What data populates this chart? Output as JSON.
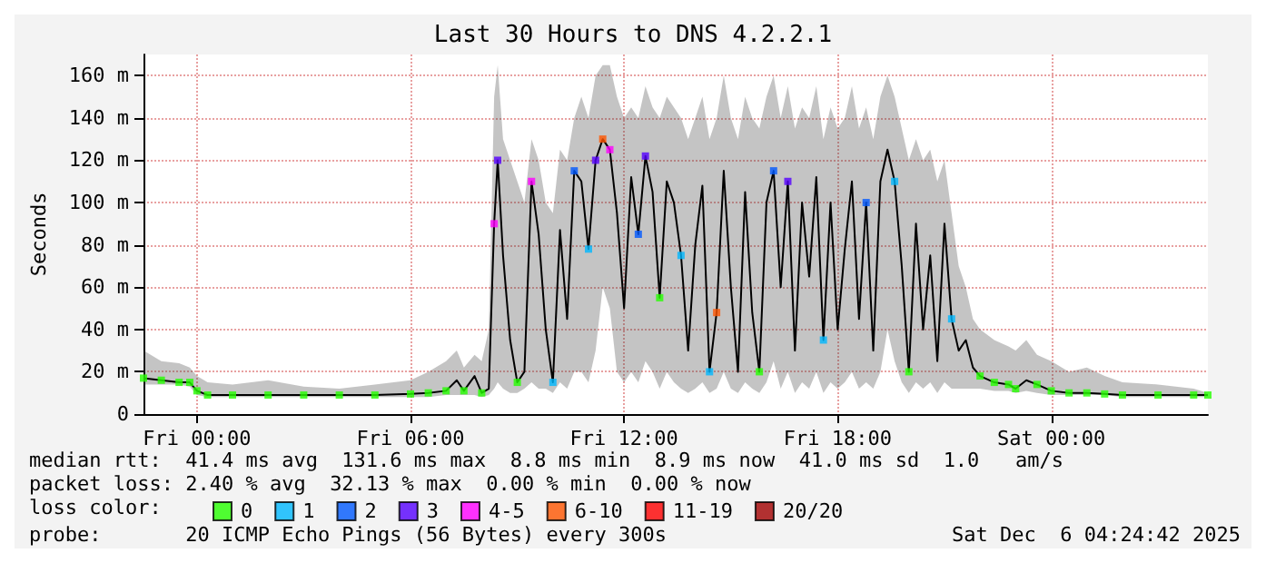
{
  "chart_data": {
    "type": "line",
    "title": "Last 30 Hours to DNS 4.2.2.1",
    "ylabel": "Seconds",
    "legend_title": "loss color:",
    "legend": "bottom",
    "grid": true,
    "marker": "square",
    "xlim": [
      "2025-12-04T22:30",
      "2025-12-06T04:24"
    ],
    "xticks": [
      {
        "value": "2025-12-05T00:00",
        "label": "Fri 00:00"
      },
      {
        "value": "2025-12-05T06:00",
        "label": "Fri 06:00"
      },
      {
        "value": "2025-12-05T12:00",
        "label": "Fri 12:00"
      },
      {
        "value": "2025-12-05T18:00",
        "label": "Fri 18:00"
      },
      {
        "value": "2025-12-06T00:00",
        "label": "Sat 00:00"
      }
    ],
    "ylim": [
      0,
      170
    ],
    "yticks": [
      0,
      {
        "value": 20,
        "label": "20 m"
      },
      {
        "value": 40,
        "label": "40 m"
      },
      {
        "value": 60,
        "label": "60 m"
      },
      {
        "value": 80,
        "label": "80 m"
      },
      {
        "value": 100,
        "label": "100 m"
      },
      {
        "value": 120,
        "label": "120 m"
      },
      {
        "value": 140,
        "label": "140 m"
      },
      {
        "value": 160,
        "label": "160 m"
      }
    ],
    "x": [
      "2025-12-04T22:30",
      "2025-12-04T23:00",
      "2025-12-04T23:30",
      "2025-12-04T23:48",
      "2025-12-05T00:00",
      "2025-12-05T00:18",
      "2025-12-05T01:00",
      "2025-12-05T02:00",
      "2025-12-05T03:00",
      "2025-12-05T04:00",
      "2025-12-05T05:00",
      "2025-12-05T06:00",
      "2025-12-05T06:30",
      "2025-12-05T07:00",
      "2025-12-05T07:18",
      "2025-12-05T07:30",
      "2025-12-05T07:48",
      "2025-12-05T08:00",
      "2025-12-05T08:12",
      "2025-12-05T08:21",
      "2025-12-05T08:27",
      "2025-12-05T08:36",
      "2025-12-05T08:48",
      "2025-12-05T09:00",
      "2025-12-05T09:12",
      "2025-12-05T09:24",
      "2025-12-05T09:36",
      "2025-12-05T09:48",
      "2025-12-05T10:00",
      "2025-12-05T10:12",
      "2025-12-05T10:24",
      "2025-12-05T10:36",
      "2025-12-05T10:48",
      "2025-12-05T11:00",
      "2025-12-05T11:12",
      "2025-12-05T11:24",
      "2025-12-05T11:36",
      "2025-12-05T11:48",
      "2025-12-05T12:00",
      "2025-12-05T12:12",
      "2025-12-05T12:24",
      "2025-12-05T12:36",
      "2025-12-05T12:48",
      "2025-12-05T13:00",
      "2025-12-05T13:12",
      "2025-12-05T13:24",
      "2025-12-05T13:36",
      "2025-12-05T13:48",
      "2025-12-05T14:00",
      "2025-12-05T14:12",
      "2025-12-05T14:24",
      "2025-12-05T14:36",
      "2025-12-05T14:48",
      "2025-12-05T15:00",
      "2025-12-05T15:12",
      "2025-12-05T15:24",
      "2025-12-05T15:36",
      "2025-12-05T15:48",
      "2025-12-05T16:00",
      "2025-12-05T16:12",
      "2025-12-05T16:24",
      "2025-12-05T16:36",
      "2025-12-05T16:48",
      "2025-12-05T17:00",
      "2025-12-05T17:12",
      "2025-12-05T17:24",
      "2025-12-05T17:36",
      "2025-12-05T17:48",
      "2025-12-05T18:00",
      "2025-12-05T18:12",
      "2025-12-05T18:24",
      "2025-12-05T18:36",
      "2025-12-05T18:48",
      "2025-12-05T19:00",
      "2025-12-05T19:12",
      "2025-12-05T19:24",
      "2025-12-05T19:36",
      "2025-12-05T19:48",
      "2025-12-05T20:00",
      "2025-12-05T20:12",
      "2025-12-05T20:24",
      "2025-12-05T20:36",
      "2025-12-05T20:48",
      "2025-12-05T21:00",
      "2025-12-05T21:12",
      "2025-12-05T21:24",
      "2025-12-05T21:36",
      "2025-12-05T21:48",
      "2025-12-05T22:00",
      "2025-12-05T22:24",
      "2025-12-05T22:48",
      "2025-12-05T23:00",
      "2025-12-05T23:18",
      "2025-12-05T23:36",
      "2025-12-06T00:00",
      "2025-12-06T00:30",
      "2025-12-06T01:00",
      "2025-12-06T01:30",
      "2025-12-06T02:00",
      "2025-12-06T03:00",
      "2025-12-06T04:00",
      "2025-12-06T04:24"
    ],
    "series": [
      {
        "color": "#000000",
        "marker": "none",
        "values": [
          17,
          16,
          15,
          15,
          11,
          9,
          9,
          9,
          9,
          9,
          9,
          9.5,
          10,
          11,
          16,
          11,
          18,
          10,
          12,
          90,
          120,
          75,
          35,
          15,
          20,
          110,
          85,
          40,
          15,
          87,
          45,
          115,
          110,
          78,
          120,
          130,
          125,
          95,
          50,
          112,
          85,
          122,
          105,
          55,
          110,
          100,
          75,
          30,
          80,
          108,
          20,
          48,
          115,
          60,
          20,
          105,
          48,
          20,
          100,
          115,
          60,
          110,
          30,
          100,
          65,
          112,
          35,
          100,
          40,
          78,
          110,
          45,
          100,
          30,
          110,
          125,
          110,
          70,
          20,
          90,
          40,
          75,
          25,
          90,
          45,
          30,
          35,
          22,
          18,
          15,
          14,
          12,
          16,
          14,
          11,
          10,
          10,
          9.5,
          9,
          9,
          9,
          9
        ],
        "lower": [
          14,
          14,
          14,
          13,
          9,
          8,
          8,
          8,
          8,
          8,
          8,
          8,
          8,
          9,
          9,
          9,
          9,
          8,
          9,
          12,
          15,
          12,
          10,
          10,
          12,
          15,
          12,
          12,
          10,
          15,
          12,
          20,
          20,
          15,
          30,
          60,
          50,
          20,
          15,
          20,
          15,
          25,
          20,
          12,
          20,
          15,
          12,
          10,
          12,
          15,
          10,
          12,
          20,
          12,
          10,
          15,
          12,
          10,
          15,
          25,
          12,
          20,
          10,
          15,
          12,
          20,
          10,
          15,
          12,
          15,
          20,
          12,
          15,
          12,
          20,
          40,
          25,
          15,
          10,
          15,
          12,
          15,
          10,
          15,
          12,
          12,
          12,
          12,
          12,
          11,
          11,
          10,
          11,
          10,
          9,
          9,
          9,
          9,
          8,
          8,
          8,
          8
        ],
        "upper": [
          30,
          25,
          24,
          22,
          18,
          15,
          14,
          16,
          13,
          12,
          14,
          16,
          20,
          25,
          30,
          22,
          28,
          25,
          40,
          150,
          165,
          130,
          120,
          110,
          100,
          130,
          120,
          100,
          95,
          125,
          120,
          140,
          150,
          140,
          160,
          165,
          165,
          150,
          140,
          145,
          140,
          155,
          145,
          140,
          150,
          145,
          140,
          130,
          140,
          150,
          130,
          140,
          160,
          140,
          130,
          150,
          140,
          135,
          150,
          160,
          140,
          155,
          135,
          145,
          140,
          155,
          130,
          145,
          135,
          140,
          155,
          135,
          145,
          130,
          150,
          160,
          150,
          135,
          120,
          130,
          120,
          125,
          110,
          120,
          95,
          70,
          60,
          45,
          40,
          35,
          32,
          30,
          35,
          28,
          25,
          20,
          22,
          18,
          15,
          14,
          12,
          10
        ]
      },
      {
        "type": "scatter",
        "name": "0",
        "color": "#26ff00",
        "x": [
          "2025-12-04T22:30",
          "2025-12-04T23:00",
          "2025-12-04T23:30",
          "2025-12-04T23:48",
          "2025-12-05T00:00",
          "2025-12-05T00:18",
          "2025-12-05T01:00",
          "2025-12-05T02:00",
          "2025-12-05T03:00",
          "2025-12-05T04:00",
          "2025-12-05T05:00",
          "2025-12-05T06:00",
          "2025-12-05T06:30",
          "2025-12-05T07:00",
          "2025-12-05T07:30",
          "2025-12-05T08:00",
          "2025-12-05T09:00",
          "2025-12-05T13:00",
          "2025-12-05T15:48",
          "2025-12-05T20:00",
          "2025-12-05T22:00",
          "2025-12-05T22:24",
          "2025-12-05T22:48",
          "2025-12-05T23:00",
          "2025-12-05T23:36",
          "2025-12-06T00:00",
          "2025-12-06T00:30",
          "2025-12-06T01:00",
          "2025-12-06T01:30",
          "2025-12-06T02:00",
          "2025-12-06T03:00",
          "2025-12-06T04:00",
          "2025-12-06T04:24"
        ],
        "values": [
          17,
          16,
          15,
          15,
          11,
          9,
          9,
          9,
          9,
          9,
          9,
          9.5,
          10,
          11,
          11,
          10,
          15,
          55,
          20,
          20,
          18,
          15,
          14,
          12,
          14,
          11,
          10,
          10,
          9.5,
          9,
          9,
          9,
          9
        ]
      },
      {
        "type": "scatter",
        "name": "1",
        "color": "#00b8ff",
        "x": [
          "2025-12-05T10:00",
          "2025-12-05T11:00",
          "2025-12-05T13:36",
          "2025-12-05T14:24",
          "2025-12-05T17:36",
          "2025-12-05T19:36",
          "2025-12-05T21:12"
        ],
        "values": [
          15,
          78,
          75,
          20,
          35,
          110,
          45
        ]
      },
      {
        "type": "scatter",
        "name": "2",
        "color": "#0059ff",
        "x": [
          "2025-12-05T10:36",
          "2025-12-05T12:24",
          "2025-12-05T16:12",
          "2025-12-05T18:48"
        ],
        "values": [
          115,
          85,
          115,
          100
        ]
      },
      {
        "type": "scatter",
        "name": "3",
        "color": "#5500ff",
        "x": [
          "2025-12-05T08:27",
          "2025-12-05T11:12",
          "2025-12-05T12:36",
          "2025-12-05T16:36"
        ],
        "values": [
          120,
          120,
          122,
          110
        ]
      },
      {
        "type": "scatter",
        "name": "4-5",
        "color": "#ff00ff",
        "x": [
          "2025-12-05T08:21",
          "2025-12-05T09:24",
          "2025-12-05T11:36"
        ],
        "values": [
          90,
          110,
          125
        ]
      },
      {
        "type": "scatter",
        "name": "6-10",
        "color": "#ff5500",
        "x": [
          "2025-12-05T11:24",
          "2025-12-05T14:36"
        ],
        "values": [
          130,
          48
        ]
      },
      {
        "type": "scatter",
        "name": "11-19",
        "color": "#ff0000",
        "values": [
          null,
          null,
          null,
          null,
          null,
          null,
          null,
          null,
          null,
          null,
          null,
          null,
          null,
          null,
          null,
          null,
          null,
          null,
          null,
          null,
          null,
          null,
          null,
          null,
          null,
          null,
          null,
          null,
          null,
          null,
          null,
          null,
          null,
          null,
          null,
          null,
          null,
          null,
          null,
          null,
          null,
          null,
          null,
          null,
          null,
          null,
          null,
          null,
          null,
          null,
          null,
          null,
          null,
          null,
          null,
          null,
          null,
          null,
          null,
          null,
          null,
          null,
          null,
          null,
          null,
          null,
          null,
          null,
          null,
          null,
          null,
          null,
          null,
          null,
          null,
          null,
          null,
          null,
          null,
          null,
          null,
          null,
          null,
          null,
          null,
          null,
          null,
          null,
          null,
          null,
          null,
          null,
          null,
          null,
          null,
          null,
          null,
          null,
          null,
          null,
          null,
          null
        ]
      },
      {
        "type": "scatter",
        "name": "20/20",
        "color": "#a10000",
        "values": [
          null,
          null,
          null,
          null,
          null,
          null,
          null,
          null,
          null,
          null,
          null,
          null,
          null,
          null,
          null,
          null,
          null,
          null,
          null,
          null,
          null,
          null,
          null,
          null,
          null,
          null,
          null,
          null,
          null,
          null,
          null,
          null,
          null,
          null,
          null,
          null,
          null,
          null,
          null,
          null,
          null,
          null,
          null,
          null,
          null,
          null,
          null,
          null,
          null,
          null,
          null,
          null,
          null,
          null,
          null,
          null,
          null,
          null,
          null,
          null,
          null,
          null,
          null,
          null,
          null,
          null,
          null,
          null,
          null,
          null,
          null,
          null,
          null,
          null,
          null,
          null,
          null,
          null,
          null,
          null,
          null,
          null,
          null,
          null,
          null,
          null,
          null,
          null,
          null,
          null,
          null,
          null,
          null,
          null,
          null,
          null,
          null,
          null,
          null,
          null,
          null,
          null
        ]
      }
    ],
    "annotations": [
      "median rtt:  41.4 ms avg  131.6 ms max  8.8 ms min  8.9 ms now  41.0 ms sd  1.0   am/s",
      "packet loss: 2.40 % avg  32.13 % max  0.00 % min  0.00 % now",
      "probe:       20 ICMP Echo Pings (56 Bytes) every 300s",
      "Sat Dec  6 04:24:42 2025"
    ]
  }
}
